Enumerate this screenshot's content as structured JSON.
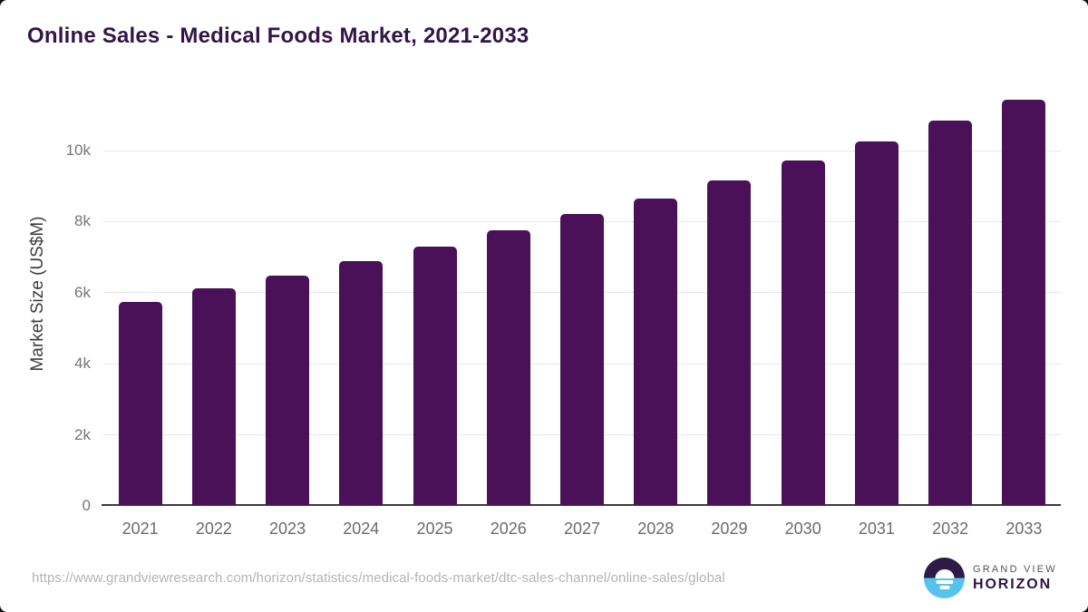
{
  "chart_data": {
    "type": "bar",
    "title": "Online Sales - Medical Foods Market, 2021-2033",
    "xlabel": "",
    "ylabel": "Market Size (US$M)",
    "categories": [
      "2021",
      "2022",
      "2023",
      "2024",
      "2025",
      "2026",
      "2027",
      "2028",
      "2029",
      "2030",
      "2031",
      "2032",
      "2033"
    ],
    "values": [
      5740,
      6110,
      6490,
      6890,
      7300,
      7760,
      8210,
      8660,
      9170,
      9710,
      10260,
      10840,
      11420
    ],
    "ylim": [
      0,
      11800
    ],
    "yticks": [
      {
        "value": 0,
        "label": "0"
      },
      {
        "value": 2000,
        "label": "2k"
      },
      {
        "value": 4000,
        "label": "4k"
      },
      {
        "value": 6000,
        "label": "6k"
      },
      {
        "value": 8000,
        "label": "8k"
      },
      {
        "value": 10000,
        "label": "10k"
      }
    ],
    "grid": "horizontal",
    "legend": "none",
    "bar_color": "#4a1158"
  },
  "colors": {
    "title": "#331549",
    "bar": "#4a1158",
    "gridline": "#e8e8e8",
    "axis_line": "#3b3b3b",
    "tick_text": "#757575",
    "logo_purple": "#2e1a47",
    "logo_blue": "#58c2ee"
  },
  "footer": {
    "source_url": "https://www.grandviewresearch.com/horizon/statistics/medical-foods-market/dtc-sales-channel/online-sales/global",
    "logo": {
      "line1": "GRAND VIEW",
      "line2": "HORIZON"
    }
  }
}
